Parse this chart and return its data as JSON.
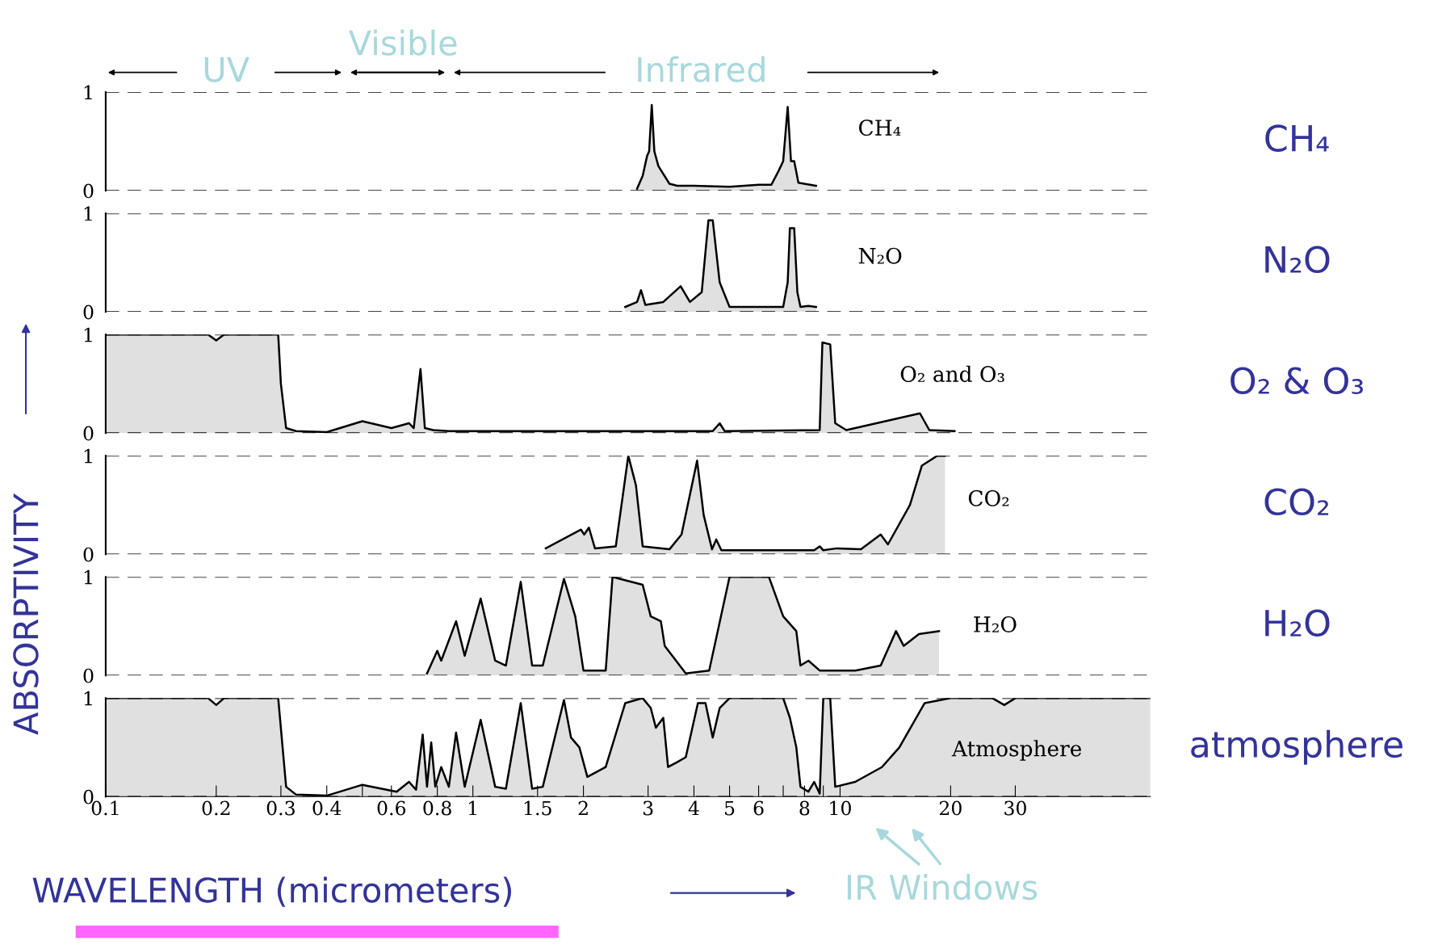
{
  "chart_data": [
    {
      "type": "area",
      "xlim": [
        0.1,
        70
      ],
      "ylim": [
        0,
        1
      ],
      "yticks": [
        0,
        1
      ],
      "log": "x",
      "grid": "y",
      "tick_labels": "y",
      "annotations": [
        "UV",
        "Visible",
        "Infrared",
        "CH₄"
      ],
      "series": [
        {
          "name": "CH₄",
          "color": "#000000",
          "x": [
            2.8,
            2.9,
            2.98,
            3.02,
            3.07,
            3.12,
            3.2,
            3.43,
            3.6,
            4,
            5,
            6,
            6.5,
            6.8,
            7.0,
            7.2,
            7.35,
            7.5,
            7.7,
            8.6
          ],
          "values": [
            0.02,
            0.15,
            0.35,
            0.4,
            0.87,
            0.4,
            0.25,
            0.07,
            0.05,
            0.05,
            0.04,
            0.06,
            0.06,
            0.2,
            0.3,
            0.85,
            0.3,
            0.3,
            0.08,
            0.05
          ]
        }
      ]
    },
    {
      "type": "area",
      "xlim": [
        0.1,
        70
      ],
      "ylim": [
        0,
        1
      ],
      "yticks": [
        0,
        1
      ],
      "log": "x",
      "grid": "y",
      "tick_labels": "y",
      "annotations": [
        "N₂O"
      ],
      "series": [
        {
          "name": "N₂O",
          "color": "#000000",
          "x": [
            2.6,
            2.8,
            2.87,
            2.95,
            3.3,
            3.68,
            3.9,
            4.2,
            4.38,
            4.5,
            4.7,
            5.0,
            7.0,
            7.2,
            7.3,
            7.5,
            7.65,
            7.8,
            8.2,
            8.6
          ],
          "values": [
            0.05,
            0.1,
            0.22,
            0.07,
            0.1,
            0.26,
            0.1,
            0.2,
            0.93,
            0.93,
            0.3,
            0.05,
            0.05,
            0.3,
            0.85,
            0.85,
            0.2,
            0.05,
            0.06,
            0.05
          ]
        }
      ]
    },
    {
      "type": "area",
      "xlim": [
        0.1,
        70
      ],
      "ylim": [
        0,
        1
      ],
      "yticks": [
        0,
        1
      ],
      "log": "x",
      "grid": "y",
      "tick_labels": "y",
      "annotations": [
        "O₂ & O₃"
      ],
      "series": [
        {
          "name": "O₂ and O₃",
          "color": "#000000",
          "x": [
            0.1,
            0.19,
            0.2,
            0.21,
            0.295,
            0.3,
            0.31,
            0.33,
            0.4,
            0.5,
            0.6,
            0.67,
            0.69,
            0.72,
            0.74,
            0.78,
            0.86,
            4.5,
            4.7,
            4.85,
            8.8,
            8.95,
            9.4,
            9.7,
            10.4,
            16.5,
            17.5,
            20.5
          ],
          "values": [
            1,
            1,
            0.94,
            1,
            1,
            0.5,
            0.05,
            0.02,
            0.01,
            0.12,
            0.05,
            0.1,
            0.05,
            0.65,
            0.05,
            0.03,
            0.02,
            0.02,
            0.1,
            0.02,
            0.03,
            0.92,
            0.9,
            0.1,
            0.03,
            0.2,
            0.03,
            0.02
          ]
        }
      ]
    },
    {
      "type": "area",
      "xlim": [
        0.1,
        70
      ],
      "ylim": [
        0,
        1
      ],
      "yticks": [
        0,
        1
      ],
      "log": "x",
      "grid": "y",
      "tick_labels": "y",
      "annotations": [
        "CO₂"
      ],
      "series": [
        {
          "name": "CO₂",
          "color": "#000000",
          "x": [
            1.58,
            1.97,
            2.01,
            2.07,
            2.15,
            2.45,
            2.65,
            2.78,
            2.9,
            3.43,
            3.7,
            4.08,
            4.25,
            4.48,
            4.6,
            4.75,
            8.5,
            8.8,
            9.0,
            9.8,
            11.4,
            12.9,
            13.5,
            15.5,
            16.7,
            18.4,
            19.3
          ],
          "values": [
            0.06,
            0.25,
            0.2,
            0.27,
            0.06,
            0.08,
            1.0,
            0.7,
            0.08,
            0.05,
            0.2,
            0.95,
            0.4,
            0.05,
            0.15,
            0.04,
            0.04,
            0.08,
            0.04,
            0.06,
            0.05,
            0.2,
            0.1,
            0.5,
            0.9,
            1.0,
            1.0
          ]
        }
      ]
    },
    {
      "type": "area",
      "xlim": [
        0.1,
        70
      ],
      "ylim": [
        0,
        1
      ],
      "yticks": [
        0,
        1
      ],
      "log": "x",
      "grid": "y",
      "tick_labels": "y",
      "ylabel": "ABSORPTIVITY",
      "annotations": [
        "H₂O"
      ],
      "series": [
        {
          "name": "H₂O",
          "color": "#000000",
          "x": [
            0.75,
            0.8,
            0.82,
            0.9,
            0.95,
            1.05,
            1.15,
            1.23,
            1.35,
            1.45,
            1.55,
            1.77,
            1.9,
            2.0,
            2.3,
            2.4,
            2.9,
            3.05,
            3.25,
            3.33,
            3.8,
            4.4,
            5.0,
            6.4,
            7.0,
            7.6,
            7.8,
            8.2,
            8.8,
            11,
            12.9,
            14.2,
            14.9,
            16.4,
            18.6
          ],
          "values": [
            0.02,
            0.25,
            0.15,
            0.55,
            0.2,
            0.78,
            0.15,
            0.1,
            0.95,
            0.1,
            0.1,
            0.98,
            0.6,
            0.05,
            0.05,
            1.0,
            0.92,
            0.6,
            0.55,
            0.3,
            0.02,
            0.05,
            1.0,
            1.0,
            0.6,
            0.45,
            0.1,
            0.15,
            0.05,
            0.05,
            0.1,
            0.45,
            0.3,
            0.42,
            0.45
          ]
        }
      ]
    },
    {
      "type": "area",
      "xlim": [
        0.1,
        70
      ],
      "ylim": [
        0,
        1
      ],
      "yticks": [
        0,
        1
      ],
      "log": "x",
      "grid": "y",
      "xticks": [
        0.1,
        0.2,
        0.3,
        0.4,
        {
          "value": 0.5,
          "label": null
        },
        0.6,
        0.8,
        1,
        1.5,
        2,
        3,
        4,
        5,
        6,
        {
          "value": 7,
          "label": null
        },
        8,
        {
          "value": 9,
          "label": null
        },
        10,
        20,
        30
      ],
      "xlabel": "WAVELENGTH (micrometers)",
      "annotations": [
        "atmosphere",
        "IR Windows"
      ],
      "series": [
        {
          "name": "Atmosphere",
          "color": "#000000",
          "x": [
            0.1,
            0.19,
            0.2,
            0.21,
            0.295,
            0.31,
            0.33,
            0.4,
            0.5,
            0.62,
            0.67,
            0.7,
            0.73,
            0.75,
            0.77,
            0.79,
            0.82,
            0.86,
            0.9,
            0.95,
            1.05,
            1.15,
            1.23,
            1.35,
            1.45,
            1.55,
            1.77,
            1.85,
            1.95,
            2.05,
            2.3,
            2.6,
            2.9,
            3.05,
            3.15,
            3.3,
            3.4,
            3.6,
            3.8,
            4.1,
            4.3,
            4.5,
            4.7,
            5.0,
            7.0,
            7.3,
            7.6,
            7.8,
            8.2,
            8.5,
            8.8,
            9.0,
            9.4,
            9.7,
            11,
            13,
            14.5,
            17,
            20,
            26,
            28,
            30,
            70
          ],
          "values": [
            1,
            1,
            0.93,
            1,
            1,
            0.1,
            0.02,
            0.01,
            0.12,
            0.05,
            0.15,
            0.07,
            0.63,
            0.1,
            0.55,
            0.1,
            0.3,
            0.1,
            0.65,
            0.1,
            0.78,
            0.1,
            0.08,
            0.95,
            0.08,
            0.1,
            0.98,
            0.6,
            0.5,
            0.2,
            0.3,
            0.95,
            1.0,
            0.9,
            0.7,
            0.8,
            0.3,
            0.35,
            0.4,
            0.95,
            0.95,
            0.6,
            0.9,
            1.0,
            1.0,
            0.8,
            0.5,
            0.1,
            0.05,
            0.15,
            0.03,
            1.0,
            1.0,
            0.1,
            0.15,
            0.3,
            0.5,
            0.95,
            1.0,
            1.0,
            0.93,
            1.0,
            1.0
          ]
        }
      ]
    }
  ]
}
